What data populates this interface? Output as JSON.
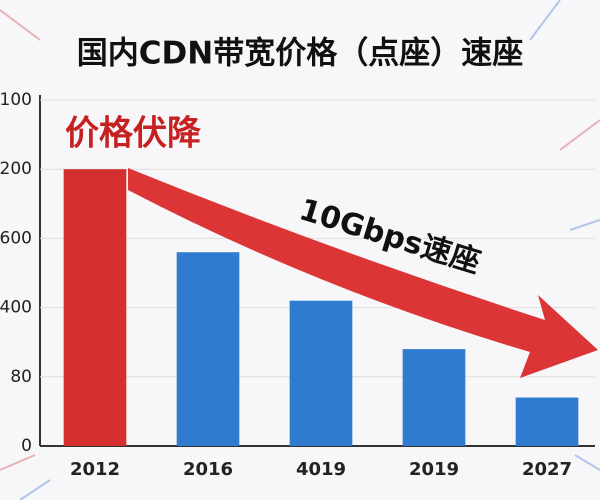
{
  "chart_data": {
    "type": "bar",
    "title": "国内CDN带宽价格（点座）速座",
    "categories": [
      "2012",
      "2016",
      "4019",
      "2019",
      "2027"
    ],
    "values": [
      4.0,
      2.8,
      2.1,
      1.4,
      0.7
    ],
    "colors": [
      "#d32f2f",
      "#2f7bd0",
      "#2f7bd0",
      "#2f7bd0",
      "#2f7bd0"
    ],
    "ylim": [
      0,
      5
    ],
    "y_labels": [
      "0",
      "80",
      "400",
      "600",
      "200",
      "100"
    ],
    "annotations": [
      "价格伏降",
      "10Gbps速座"
    ],
    "grid": true
  }
}
